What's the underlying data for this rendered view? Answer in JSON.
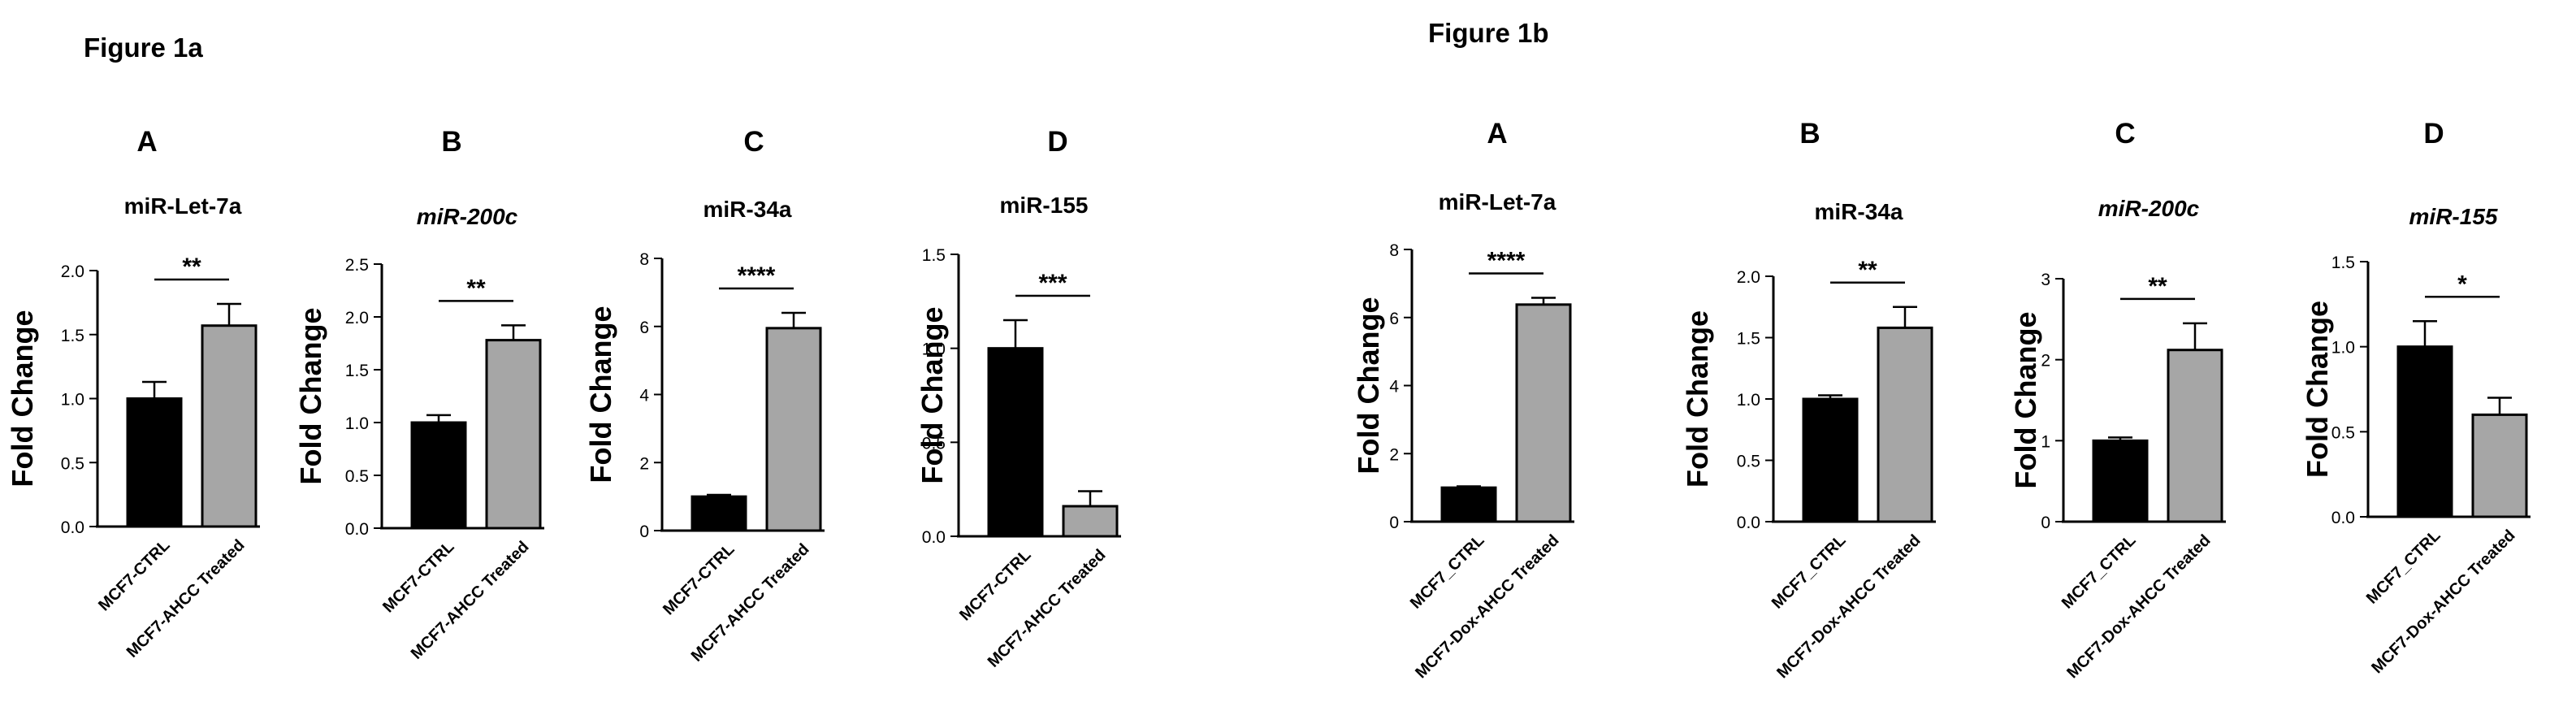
{
  "figures": [
    {
      "title": "Figure 1a"
    },
    {
      "title": "Figure 1b"
    }
  ],
  "colors": {
    "ctrl": "#000000",
    "treated": "#a6a6a6"
  },
  "chart_data": [
    {
      "type": "bar",
      "figure": "Figure 1a",
      "panel": "A",
      "title": "miR-Let-7a",
      "title_italic": false,
      "ylabel": "Fold Change",
      "categories": [
        "MCF7-CTRL",
        "MCF7-AHCC Treated"
      ],
      "values": [
        1.0,
        1.57
      ],
      "errors": [
        0.13,
        0.17
      ],
      "ylim": [
        0,
        2.0
      ],
      "yticks": [
        "0.0",
        "0.5",
        "1.0",
        "1.5",
        "2.0"
      ],
      "significance": "**"
    },
    {
      "type": "bar",
      "figure": "Figure 1a",
      "panel": "B",
      "title": "miR-200c",
      "title_italic": true,
      "ylabel": "Fold Change",
      "categories": [
        "MCF7-CTRL",
        "MCF7-AHCC Treated"
      ],
      "values": [
        1.0,
        1.78
      ],
      "errors": [
        0.07,
        0.14
      ],
      "ylim": [
        0,
        2.5
      ],
      "yticks": [
        "0.0",
        "0.5",
        "1.0",
        "1.5",
        "2.0",
        "2.5"
      ],
      "significance": "**"
    },
    {
      "type": "bar",
      "figure": "Figure 1a",
      "panel": "C",
      "title": "miR-34a",
      "title_italic": false,
      "ylabel": "Fold Change",
      "categories": [
        "MCF7-CTRL",
        "MCF7-AHCC Treated"
      ],
      "values": [
        1.0,
        5.95
      ],
      "errors": [
        0.05,
        0.45
      ],
      "ylim": [
        0,
        8
      ],
      "yticks": [
        "0",
        "2",
        "4",
        "6",
        "8"
      ],
      "significance": "****"
    },
    {
      "type": "bar",
      "figure": "Figure 1a",
      "panel": "D",
      "title": "miR-155",
      "title_italic": false,
      "ylabel": "Fold Change",
      "categories": [
        "MCF7-CTRL",
        "MCF7-AHCC Treated"
      ],
      "values": [
        1.0,
        0.16
      ],
      "errors": [
        0.15,
        0.08
      ],
      "ylim": [
        0,
        1.5
      ],
      "yticks": [
        "0.0",
        "0.5",
        "1.0",
        "1.5"
      ],
      "significance": "***"
    },
    {
      "type": "bar",
      "figure": "Figure 1b",
      "panel": "A",
      "title": "miR-Let-7a",
      "title_italic": false,
      "ylabel": "Fold Change",
      "categories": [
        "MCF7_CTRL",
        "MCF7-Dox-AHCC Treated"
      ],
      "values": [
        1.0,
        6.38
      ],
      "errors": [
        0.04,
        0.2
      ],
      "ylim": [
        0,
        8
      ],
      "yticks": [
        "0",
        "2",
        "4",
        "6",
        "8"
      ],
      "significance": "****"
    },
    {
      "type": "bar",
      "figure": "Figure 1b",
      "panel": "B",
      "title": "miR-34a",
      "title_italic": false,
      "ylabel": "Fold Change",
      "categories": [
        "MCF7_CTRL",
        "MCF7-Dox-AHCC Treated"
      ],
      "values": [
        1.0,
        1.58
      ],
      "errors": [
        0.03,
        0.17
      ],
      "ylim": [
        0,
        2.0
      ],
      "yticks": [
        "0.0",
        "0.5",
        "1.0",
        "1.5",
        "2.0"
      ],
      "significance": "**"
    },
    {
      "type": "bar",
      "figure": "Figure 1b",
      "panel": "C",
      "title": "miR-200c",
      "title_italic": true,
      "ylabel": "Fold Change",
      "categories": [
        "MCF7_CTRL",
        "MCF7-Dox-AHCC Treated"
      ],
      "values": [
        1.0,
        2.12
      ],
      "errors": [
        0.04,
        0.33
      ],
      "ylim": [
        0,
        3
      ],
      "yticks": [
        "0",
        "1",
        "2",
        "3"
      ],
      "significance": "**"
    },
    {
      "type": "bar",
      "figure": "Figure 1b",
      "panel": "D",
      "title": "miR-155",
      "title_italic": true,
      "ylabel": "Fold Change",
      "categories": [
        "MCF7_CTRL",
        "MCF7-Dox-AHCC Treated"
      ],
      "values": [
        1.0,
        0.6
      ],
      "errors": [
        0.15,
        0.1
      ],
      "ylim": [
        0,
        1.5
      ],
      "yticks": [
        "0.0",
        "0.5",
        "1.0",
        "1.5"
      ],
      "significance": "*"
    }
  ]
}
